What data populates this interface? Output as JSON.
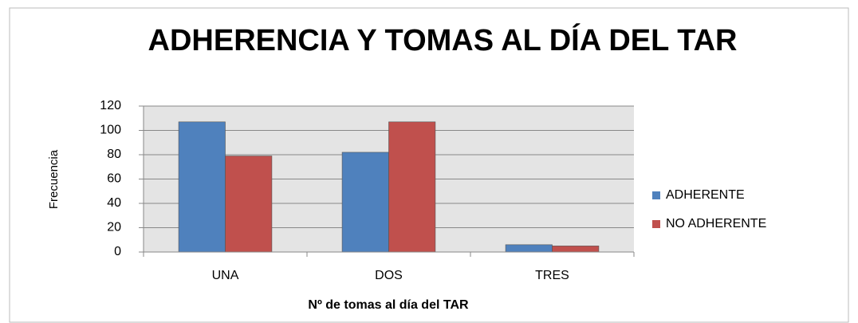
{
  "chart_data": {
    "type": "bar",
    "title": "ADHERENCIA Y TOMAS AL DÍA DEL TAR",
    "x_label": "Nº de tomas al día del TAR",
    "y_label": "Frecuencia",
    "categories": [
      "UNA",
      "DOS",
      "TRES"
    ],
    "series": [
      {
        "name": "ADHERENTE",
        "color": "#4f81bd",
        "values": [
          107,
          82,
          6
        ]
      },
      {
        "name": "NO ADHERENTE",
        "color": "#c0504d",
        "values": [
          79,
          107,
          5
        ]
      }
    ],
    "ylim": [
      0,
      120
    ],
    "yticks": [
      0,
      20,
      40,
      60,
      80,
      100,
      120
    ],
    "grid": true,
    "legend": "right"
  }
}
